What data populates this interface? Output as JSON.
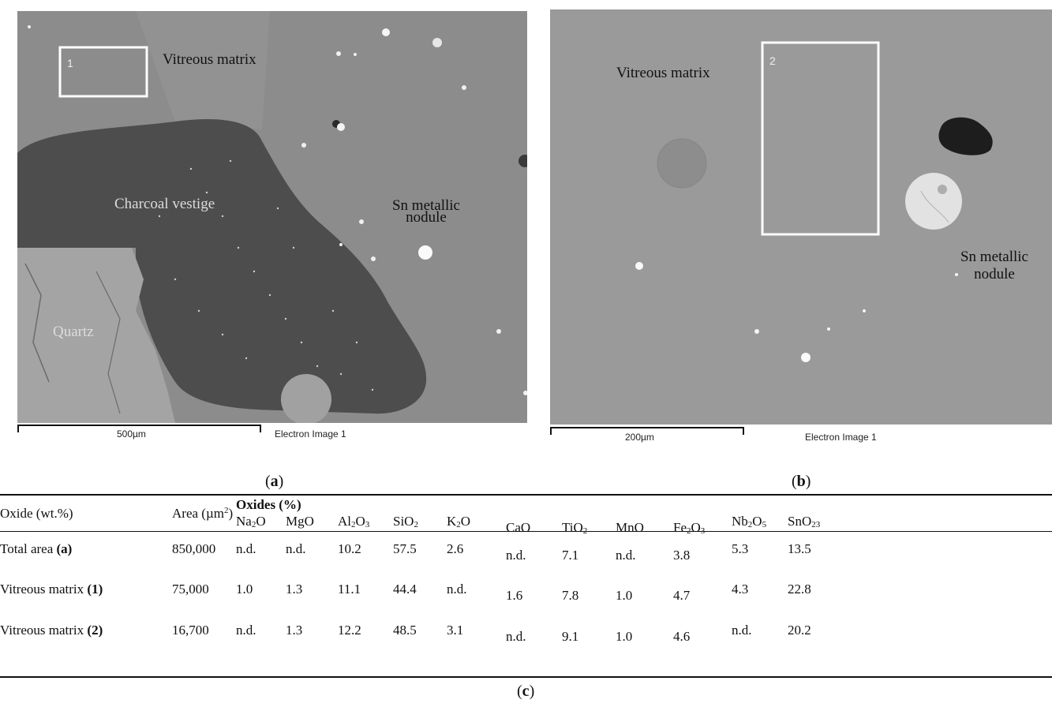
{
  "figure": {
    "panel_a": {
      "box_number": "1",
      "labels": {
        "vitreous": "Vitreous matrix",
        "charcoal": "Charcoal vestige",
        "sn_line1": "Sn metallic",
        "sn_line2": "nodule",
        "quartz": "Quartz"
      },
      "scale_bar": "500µm",
      "image_name": "Electron Image 1",
      "caption_letter": "a"
    },
    "panel_b": {
      "box_number": "2",
      "labels": {
        "vitreous": "Vitreous matrix",
        "sn_line1": "Sn metallic",
        "sn_line2": "nodule"
      },
      "scale_bar": "200µm",
      "image_name": "Electron Image 1",
      "caption_letter": "b"
    },
    "table": {
      "row_header": "Oxide (wt.%)",
      "area_header": "Area (µm",
      "area_sup": "2",
      "area_close": ")",
      "group_header": "Oxides (%)",
      "oxides": [
        {
          "base": "Na",
          "s1": "2",
          "mid": "O",
          "s2": "",
          "tail": ""
        },
        {
          "base": "MgO",
          "s1": "",
          "mid": "",
          "s2": "",
          "tail": ""
        },
        {
          "base": "Al",
          "s1": "2",
          "mid": "O",
          "s2": "3",
          "tail": ""
        },
        {
          "base": "SiO",
          "s1": "2",
          "mid": "",
          "s2": "",
          "tail": ""
        },
        {
          "base": "K",
          "s1": "2",
          "mid": "O",
          "s2": "",
          "tail": ""
        },
        {
          "base": "CaO",
          "s1": "",
          "mid": "",
          "s2": "",
          "tail": ""
        },
        {
          "base": "TiO",
          "s1": "2",
          "mid": "",
          "s2": "",
          "tail": ""
        },
        {
          "base": "MnO",
          "s1": "",
          "mid": "",
          "s2": "",
          "tail": ""
        },
        {
          "base": "Fe",
          "s1": "2",
          "mid": "O",
          "s2": "3",
          "tail": ""
        },
        {
          "base": "Nb",
          "s1": "2",
          "mid": "O",
          "s2": "5",
          "tail": ""
        },
        {
          "base": "SnO",
          "s1": "23",
          "mid": "",
          "s2": "",
          "tail": ""
        }
      ],
      "rows": [
        {
          "name": "Total area ",
          "ref": "(a)",
          "area": "850,000",
          "values": [
            "n.d.",
            "n.d.",
            "10.2",
            "57.5",
            "2.6",
            "n.d.",
            "7.1",
            "n.d.",
            "3.8",
            "5.3",
            "13.5"
          ]
        },
        {
          "name": "Vitreous matrix ",
          "ref": "(1)",
          "area": "75,000",
          "values": [
            "1.0",
            "1.3",
            "11.1",
            "44.4",
            "n.d.",
            "1.6",
            "7.8",
            "1.0",
            "4.7",
            "4.3",
            "22.8"
          ]
        },
        {
          "name": "Vitreous matrix ",
          "ref": "(2)",
          "area": "16,700",
          "values": [
            "n.d.",
            "1.3",
            "12.2",
            "48.5",
            "3.1",
            "n.d.",
            "9.1",
            "1.0",
            "4.6",
            "n.d.",
            "20.2"
          ]
        }
      ],
      "caption_letter": "c"
    }
  }
}
